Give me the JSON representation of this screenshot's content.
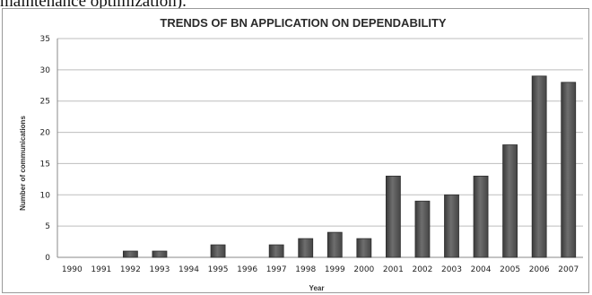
{
  "caption_fragment": "maintenance optimization).",
  "colors": {
    "bar_fill": "#5c5c5c",
    "bar_edge": "#2e2e2e",
    "grid": "#bdbdbd",
    "axis": "#8a8a8a"
  },
  "chart_data": {
    "type": "bar",
    "title": "TRENDS OF BN APPLICATION ON DEPENDABILITY",
    "xlabel": "Year",
    "ylabel": "Number of communications",
    "ylim": [
      0,
      35
    ],
    "yticks": [
      0,
      5,
      10,
      15,
      20,
      25,
      30,
      35
    ],
    "grid": true,
    "legend": "none",
    "categories": [
      "1990",
      "1991",
      "1992",
      "1993",
      "1994",
      "1995",
      "1996",
      "1997",
      "1998",
      "1999",
      "2000",
      "2001",
      "2002",
      "2003",
      "2004",
      "2005",
      "2006",
      "2007"
    ],
    "values": [
      0,
      0,
      1,
      1,
      0,
      2,
      0,
      2,
      3,
      4,
      3,
      13,
      9,
      10,
      13,
      18,
      29,
      28
    ]
  }
}
